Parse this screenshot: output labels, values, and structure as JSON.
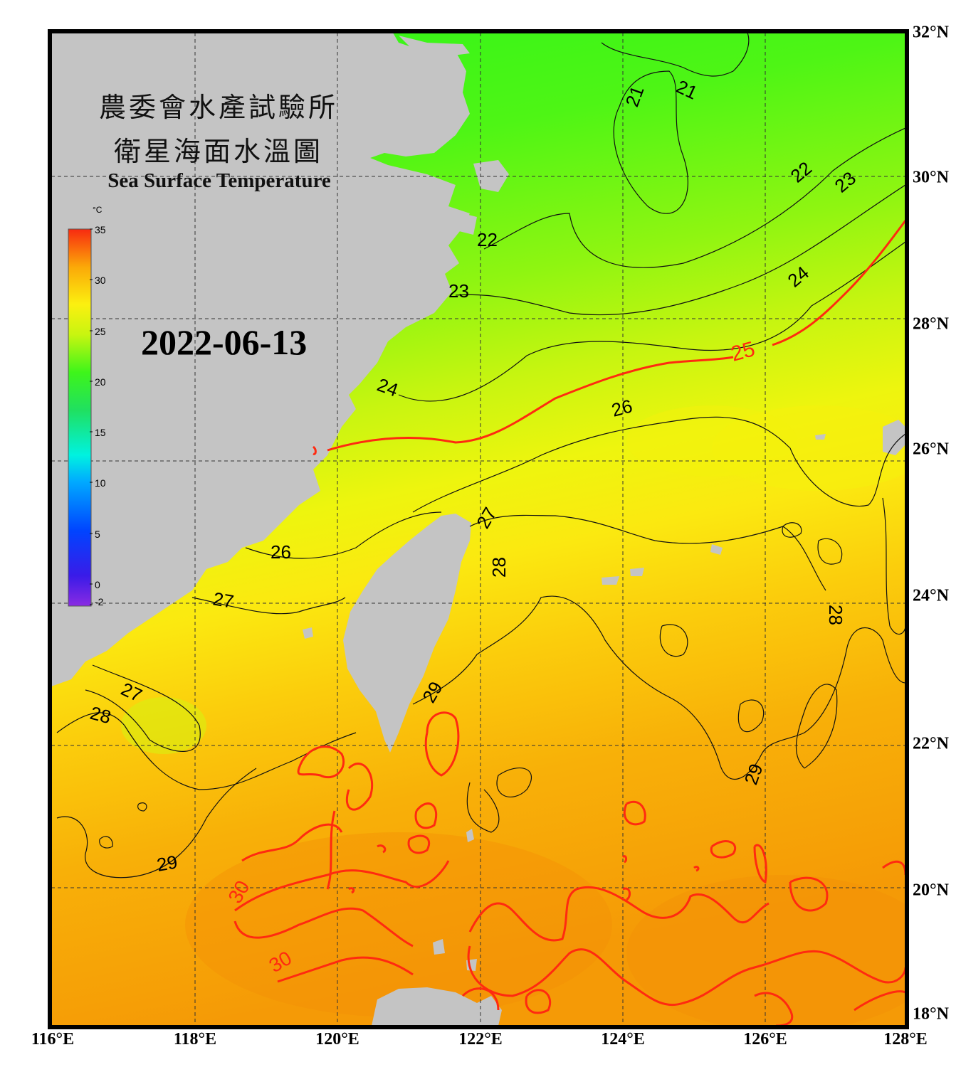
{
  "title": {
    "cn_line1": "農委會水產試驗所",
    "cn_line2": "衛星海面水溫圖",
    "en": "Sea Surface Temperature"
  },
  "date": "2022-06-13",
  "colorbar": {
    "unit": "°C",
    "min": -2,
    "max": 35,
    "ticks": [
      "35",
      "30",
      "25",
      "20",
      "15",
      "10",
      "5",
      "0",
      "-2"
    ]
  },
  "axes": {
    "lon_labels": [
      "116°E",
      "118°E",
      "120°E",
      "122°E",
      "124°E",
      "126°E",
      "128°E"
    ],
    "lat_labels": [
      "32°N",
      "30°N",
      "28°N",
      "26°N",
      "24°N",
      "22°N",
      "20°N",
      "18°N"
    ],
    "lon_range": [
      116,
      128
    ],
    "lat_range": [
      18,
      32
    ],
    "grid": "dashed"
  },
  "contour_labels": [
    "21",
    "21",
    "22",
    "23",
    "22",
    "23",
    "24",
    "25",
    "24",
    "26",
    "27",
    "28",
    "26",
    "27",
    "27",
    "28",
    "28",
    "29",
    "29",
    "29",
    "30",
    "30"
  ],
  "highlight_contours": [
    "25",
    "30"
  ],
  "colors": {
    "land": "#c4c4c4",
    "contour": "#111111",
    "highlight_contour": "#ff2a10",
    "sst_21": "#2ef51a",
    "sst_25": "#b7f511",
    "sst_28": "#fbe910",
    "sst_30": "#f7a608"
  }
}
